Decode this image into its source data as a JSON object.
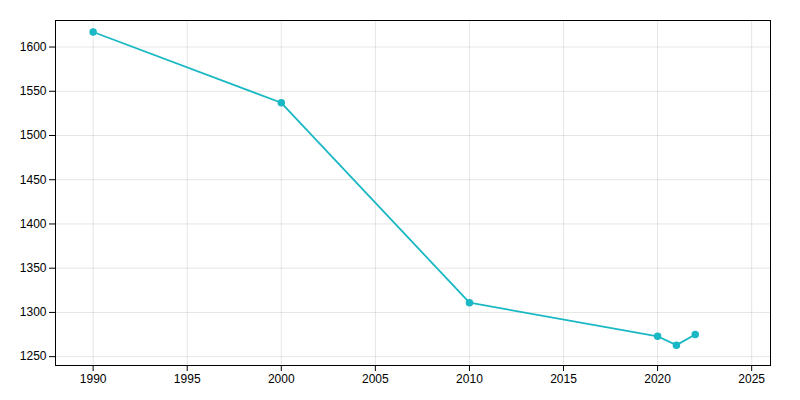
{
  "chart_data": {
    "type": "line",
    "x": [
      1990,
      2000,
      2010,
      2020,
      2021,
      2022
    ],
    "values": [
      1617,
      1537,
      1311,
      1273,
      1263,
      1275
    ],
    "color": "#1ab8c4",
    "marker": "circle",
    "xlim": [
      1988,
      2026
    ],
    "ylim": [
      1240,
      1630
    ],
    "xticks": [
      1990,
      1995,
      2000,
      2005,
      2010,
      2015,
      2020,
      2025
    ],
    "yticks": [
      1250,
      1300,
      1350,
      1400,
      1450,
      1500,
      1550,
      1600
    ],
    "grid": true
  }
}
